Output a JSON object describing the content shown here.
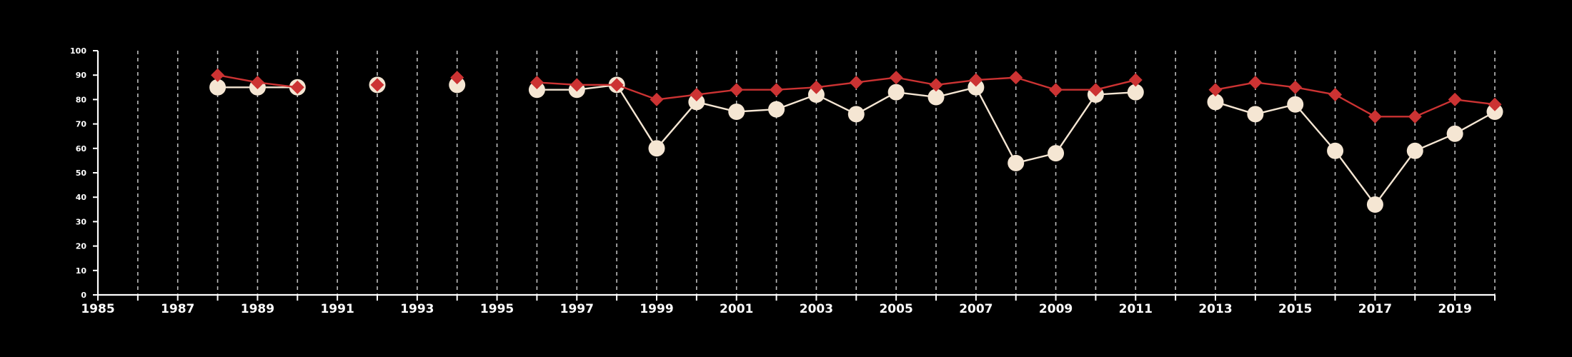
{
  "chart_data": {
    "type": "line",
    "title": "",
    "xlabel": "",
    "ylabel": "",
    "xlim": [
      1985,
      2020
    ],
    "ylim": [
      0,
      100
    ],
    "x_tick_labels": [
      "1985",
      "1987",
      "1989",
      "1991",
      "1993",
      "1995",
      "1997",
      "1999",
      "2001",
      "2003",
      "2005",
      "2007",
      "2009",
      "2011",
      "2013",
      "2015",
      "2017",
      "2019"
    ],
    "y_tick_labels": [
      "0",
      "10",
      "20",
      "30",
      "40",
      "50",
      "60",
      "70",
      "80",
      "90",
      "100"
    ],
    "vertical_gridlines_each_year": true,
    "colors": {
      "background": "#000000",
      "axis": "#ffffff",
      "grid": "#bdbdbd",
      "series_a": "#f5e6d3",
      "series_b": "#cc3333"
    },
    "series": [
      {
        "marker": "circle",
        "points": [
          [
            1988,
            85
          ],
          [
            1989,
            85
          ],
          [
            1990,
            85
          ],
          [
            1992,
            86
          ],
          [
            1994,
            86
          ],
          [
            1996,
            84
          ],
          [
            1997,
            84
          ],
          [
            1998,
            86
          ],
          [
            1999,
            60
          ],
          [
            2000,
            79
          ],
          [
            2001,
            75
          ],
          [
            2002,
            76
          ],
          [
            2003,
            82
          ],
          [
            2004,
            74
          ],
          [
            2005,
            83
          ],
          [
            2006,
            81
          ],
          [
            2007,
            85
          ],
          [
            2008,
            54
          ],
          [
            2009,
            58
          ],
          [
            2010,
            82
          ],
          [
            2011,
            83
          ],
          [
            2013,
            79
          ],
          [
            2014,
            74
          ],
          [
            2015,
            78
          ],
          [
            2016,
            59
          ],
          [
            2017,
            37
          ],
          [
            2018,
            59
          ],
          [
            2019,
            66
          ],
          [
            2020,
            75
          ]
        ]
      },
      {
        "marker": "diamond",
        "points": [
          [
            1988,
            90
          ],
          [
            1989,
            87
          ],
          [
            1990,
            85
          ],
          [
            1992,
            86
          ],
          [
            1994,
            89
          ],
          [
            1996,
            87
          ],
          [
            1997,
            86
          ],
          [
            1998,
            86
          ],
          [
            1999,
            80
          ],
          [
            2000,
            82
          ],
          [
            2001,
            84
          ],
          [
            2002,
            84
          ],
          [
            2003,
            85
          ],
          [
            2004,
            87
          ],
          [
            2005,
            89
          ],
          [
            2006,
            86
          ],
          [
            2007,
            88
          ],
          [
            2008,
            89
          ],
          [
            2009,
            84
          ],
          [
            2010,
            84
          ],
          [
            2011,
            88
          ],
          [
            2013,
            84
          ],
          [
            2014,
            87
          ],
          [
            2015,
            85
          ],
          [
            2016,
            82
          ],
          [
            2017,
            73
          ],
          [
            2018,
            73
          ],
          [
            2019,
            80
          ],
          [
            2020,
            78
          ]
        ]
      }
    ]
  }
}
